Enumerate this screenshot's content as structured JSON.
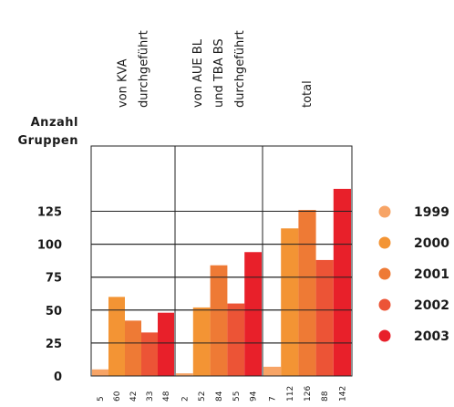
{
  "chart_data": {
    "type": "bar",
    "ylabel_lines": [
      "Anzahl",
      "Gruppen"
    ],
    "ylim": [
      0,
      150
    ],
    "yticks": [
      0,
      25,
      50,
      75,
      100,
      125
    ],
    "grid": true,
    "legend_position": "right",
    "groups": [
      {
        "label_lines": [
          "von KVA",
          "durchgeführt"
        ]
      },
      {
        "label_lines": [
          "von AUE BL",
          "und TBA BS",
          "durchgeführt"
        ]
      },
      {
        "label_lines": [
          "total"
        ]
      }
    ],
    "series": [
      {
        "name": "1999",
        "color": "#f7a466",
        "values": [
          5,
          2,
          7
        ]
      },
      {
        "name": "2000",
        "color": "#f39434",
        "values": [
          60,
          52,
          112
        ]
      },
      {
        "name": "2001",
        "color": "#ee7a35",
        "values": [
          42,
          84,
          126
        ]
      },
      {
        "name": "2002",
        "color": "#ec5436",
        "values": [
          33,
          55,
          88
        ]
      },
      {
        "name": "2003",
        "color": "#e8202a",
        "values": [
          48,
          94,
          142
        ]
      }
    ]
  }
}
